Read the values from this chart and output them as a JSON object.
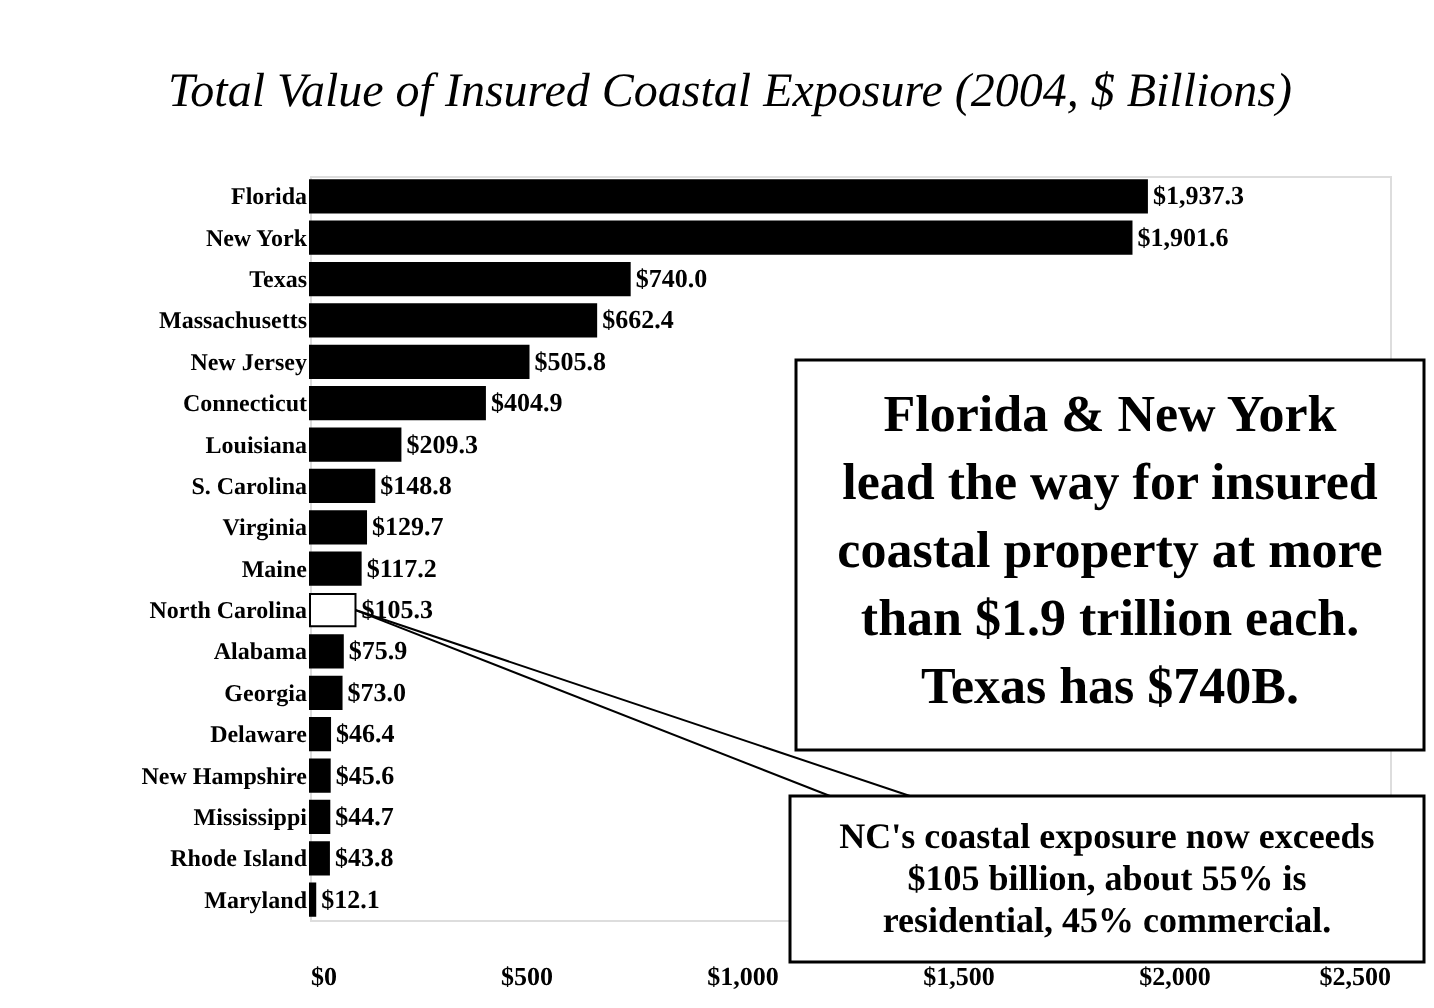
{
  "chart_data": {
    "type": "bar",
    "orientation": "horizontal",
    "title": "Total Value of Insured Coastal Exposure (2004, $ Billions)",
    "categories": [
      "Florida",
      "New York",
      "Texas",
      "Massachusetts",
      "New Jersey",
      "Connecticut",
      "Louisiana",
      "S. Carolina",
      "Virginia",
      "Maine",
      "North Carolina",
      "Alabama",
      "Georgia",
      "Delaware",
      "New Hampshire",
      "Mississippi",
      "Rhode Island",
      "Maryland"
    ],
    "values": [
      1937.3,
      1901.6,
      740.0,
      662.4,
      505.8,
      404.9,
      209.3,
      148.8,
      129.7,
      117.2,
      105.3,
      75.9,
      73.0,
      46.4,
      45.6,
      44.7,
      43.8,
      12.1
    ],
    "value_labels": [
      "$1,937.3",
      "$1,901.6",
      "$740.0",
      "$662.4",
      "$505.8",
      "$404.9",
      "$209.3",
      "$148.8",
      "$129.7",
      "$117.2",
      "$105.3",
      "$75.9",
      "$73.0",
      "$46.4",
      "$45.6",
      "$44.7",
      "$43.8",
      "$12.1"
    ],
    "colors": [
      "#000000",
      "#000000",
      "#000000",
      "#000000",
      "#000000",
      "#000000",
      "#000000",
      "#000000",
      "#000000",
      "#000000",
      "#ffffff",
      "#000000",
      "#000000",
      "#000000",
      "#000000",
      "#000000",
      "#000000",
      "#000000"
    ],
    "xlim": [
      0,
      2500
    ],
    "xticks": [
      {
        "value": 0,
        "label": "$0"
      },
      {
        "value": 500,
        "label": "$500"
      },
      {
        "value": 1000,
        "label": "$1,000"
      },
      {
        "value": 1500,
        "label": "$1,500"
      },
      {
        "value": 2000,
        "label": "$2,000"
      },
      {
        "value": 2500,
        "label": "$2,500"
      }
    ],
    "grid": false,
    "annotations": [
      "Florida & New York\nlead the way for insured\ncoastal property at more\nthan $1.9 trillion each.\nTexas has $740B.",
      {
        "text": "NC's coastal exposure now exceeds\n$105 billion, about 55% is\nresidential, 45% commercial.",
        "x": 105.3,
        "y": "North Carolina"
      }
    ]
  }
}
